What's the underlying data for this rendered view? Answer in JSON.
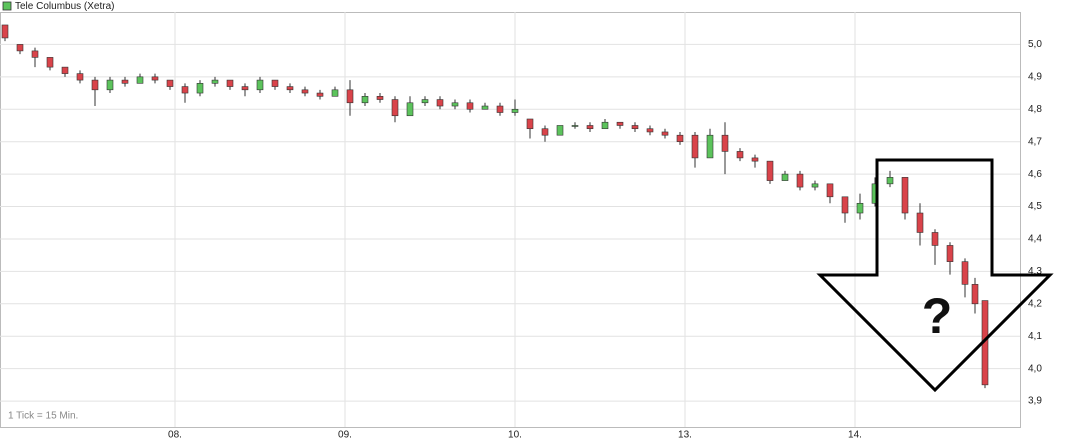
{
  "chart_data": {
    "type": "candlestick",
    "legend": "Tele Columbus (Xetra)",
    "annotations": [
      "1 Tick = 15 Min.",
      "?"
    ],
    "up_color": "#5cc35c",
    "down_color": "#d9434a",
    "x": [
      0,
      3,
      6,
      9,
      12,
      15,
      18,
      21,
      24,
      27,
      30,
      33,
      36,
      39,
      42,
      45,
      48,
      51,
      54,
      57,
      60,
      63,
      66,
      69,
      72,
      75,
      78,
      81,
      84,
      87,
      90,
      93,
      96,
      99,
      102,
      105,
      108,
      111,
      114,
      117,
      120,
      123,
      126,
      129,
      132,
      135,
      138,
      141,
      144,
      147,
      150,
      153,
      156,
      159,
      162,
      165,
      168,
      171,
      174,
      177,
      180,
      183,
      186,
      189,
      192,
      194,
      196
    ],
    "open": [
      5.06,
      5.0,
      4.98,
      4.96,
      4.93,
      4.91,
      4.89,
      4.86,
      4.89,
      4.88,
      4.9,
      4.89,
      4.87,
      4.85,
      4.88,
      4.89,
      4.87,
      4.86,
      4.89,
      4.87,
      4.86,
      4.85,
      4.84,
      4.86,
      4.82,
      4.84,
      4.83,
      4.78,
      4.82,
      4.83,
      4.81,
      4.82,
      4.8,
      4.81,
      4.79,
      4.77,
      4.74,
      4.72,
      4.75,
      4.75,
      4.74,
      4.76,
      4.75,
      4.74,
      4.73,
      4.72,
      4.72,
      4.65,
      4.72,
      4.67,
      4.65,
      4.64,
      4.58,
      4.6,
      4.56,
      4.57,
      4.53,
      4.48,
      4.51,
      4.57,
      4.59,
      4.48,
      4.42,
      4.38,
      4.33,
      4.26,
      4.21
    ],
    "high": [
      5.06,
      5.0,
      4.99,
      4.96,
      4.93,
      4.92,
      4.9,
      4.9,
      4.9,
      4.91,
      4.91,
      4.89,
      4.88,
      4.89,
      4.9,
      4.89,
      4.88,
      4.9,
      4.89,
      4.88,
      4.87,
      4.86,
      4.87,
      4.89,
      4.85,
      4.85,
      4.84,
      4.84,
      4.84,
      4.84,
      4.83,
      4.83,
      4.82,
      4.82,
      4.83,
      4.77,
      4.75,
      4.75,
      4.76,
      4.76,
      4.77,
      4.76,
      4.76,
      4.75,
      4.74,
      4.73,
      4.73,
      4.74,
      4.76,
      4.68,
      4.66,
      4.64,
      4.61,
      4.61,
      4.58,
      4.57,
      4.53,
      4.54,
      4.59,
      4.61,
      4.59,
      4.51,
      4.43,
      4.39,
      4.34,
      4.28,
      4.21
    ],
    "low": [
      5.01,
      4.97,
      4.93,
      4.92,
      4.9,
      4.88,
      4.81,
      4.85,
      4.87,
      4.88,
      4.88,
      4.86,
      4.82,
      4.84,
      4.87,
      4.86,
      4.84,
      4.85,
      4.86,
      4.85,
      4.84,
      4.83,
      4.84,
      4.78,
      4.81,
      4.82,
      4.76,
      4.78,
      4.81,
      4.8,
      4.8,
      4.79,
      4.8,
      4.78,
      4.78,
      4.71,
      4.7,
      4.72,
      4.74,
      4.73,
      4.74,
      4.74,
      4.73,
      4.72,
      4.71,
      4.69,
      4.62,
      4.65,
      4.6,
      4.64,
      4.62,
      4.57,
      4.58,
      4.55,
      4.55,
      4.51,
      4.45,
      4.46,
      4.5,
      4.56,
      4.46,
      4.38,
      4.32,
      4.29,
      4.22,
      4.17,
      3.94
    ],
    "close": [
      5.02,
      4.98,
      4.96,
      4.93,
      4.91,
      4.89,
      4.86,
      4.89,
      4.88,
      4.9,
      4.89,
      4.87,
      4.85,
      4.88,
      4.89,
      4.87,
      4.86,
      4.89,
      4.87,
      4.86,
      4.85,
      4.84,
      4.86,
      4.82,
      4.84,
      4.83,
      4.78,
      4.82,
      4.83,
      4.81,
      4.82,
      4.8,
      4.81,
      4.79,
      4.8,
      4.74,
      4.72,
      4.75,
      4.75,
      4.74,
      4.76,
      4.75,
      4.74,
      4.73,
      4.72,
      4.7,
      4.65,
      4.72,
      4.67,
      4.65,
      4.64,
      4.58,
      4.6,
      4.56,
      4.57,
      4.53,
      4.48,
      4.51,
      4.57,
      4.59,
      4.48,
      4.42,
      4.38,
      4.33,
      4.26,
      4.2,
      3.95
    ],
    "xlim": [
      -1,
      203
    ],
    "xticks": [
      {
        "value": 34,
        "label": "08."
      },
      {
        "value": 68,
        "label": "09."
      },
      {
        "value": 102,
        "label": "10."
      },
      {
        "value": 136,
        "label": "13."
      },
      {
        "value": 170,
        "label": "14."
      }
    ],
    "ylim": [
      3.82,
      5.1
    ],
    "yticks": [
      {
        "value": 3.9,
        "label": "3,9"
      },
      {
        "value": 4.0,
        "label": "4,0"
      },
      {
        "value": 4.1,
        "label": "4,1"
      },
      {
        "value": 4.2,
        "label": "4,2"
      },
      {
        "value": 4.3,
        "label": "4,3"
      },
      {
        "value": 4.4,
        "label": "4,4"
      },
      {
        "value": 4.5,
        "label": "4,5"
      },
      {
        "value": 4.6,
        "label": "4,6"
      },
      {
        "value": 4.7,
        "label": "4,7"
      },
      {
        "value": 4.8,
        "label": "4,8"
      },
      {
        "value": 4.9,
        "label": "4,9"
      },
      {
        "value": 5.0,
        "label": "5,0"
      }
    ],
    "grid": true
  }
}
